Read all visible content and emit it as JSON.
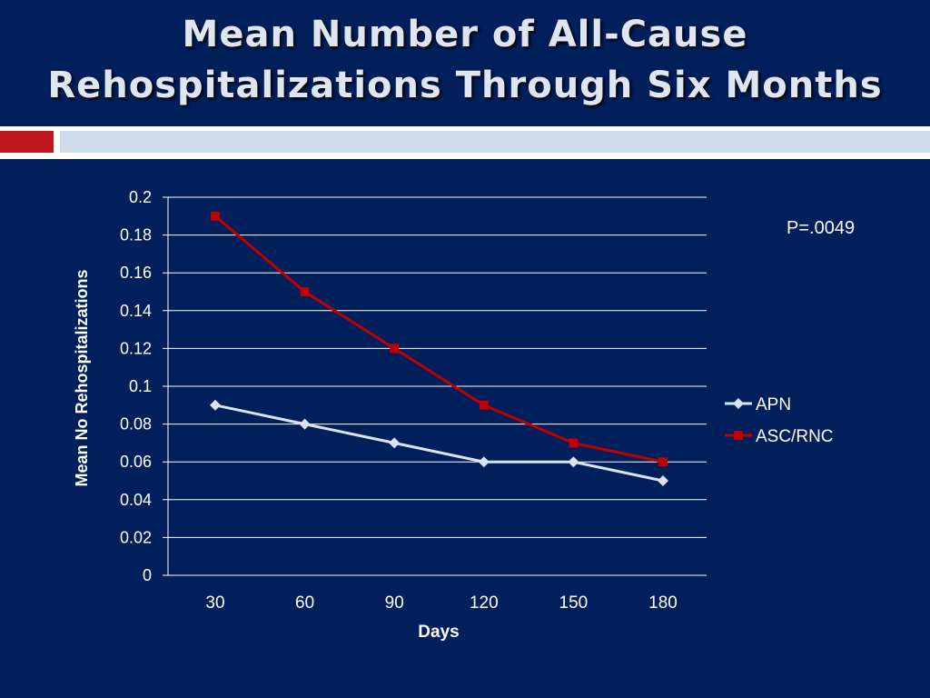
{
  "slide": {
    "title_line1": "Mean Number of  All-Cause",
    "title_line2": "Rehospitalizations Through Six Months",
    "annotation": "P=.0049"
  },
  "colors": {
    "background": "#001f5b",
    "accent_red": "#c0171f",
    "accent_light": "#cfdbe8",
    "apn": "#dce3f0",
    "asc_rnc": "#c00000"
  },
  "chart_data": {
    "type": "line",
    "x": [
      30,
      60,
      90,
      120,
      150,
      180
    ],
    "xlabel": "Days",
    "ylabel": "Mean No Rehospitalizations",
    "ylim": [
      0,
      0.2
    ],
    "yticks": [
      0,
      0.02,
      0.04,
      0.06,
      0.08,
      0.1,
      0.12,
      0.14,
      0.16,
      0.18,
      0.2
    ],
    "grid": true,
    "legend": "right",
    "series": [
      {
        "name": "APN",
        "marker": "diamond",
        "color": "#dce3f0",
        "values": [
          0.09,
          0.08,
          0.07,
          0.06,
          0.06,
          0.05
        ]
      },
      {
        "name": "ASC/RNC",
        "marker": "square",
        "color": "#c00000",
        "values": [
          0.19,
          0.15,
          0.12,
          0.09,
          0.07,
          0.06
        ]
      }
    ]
  }
}
